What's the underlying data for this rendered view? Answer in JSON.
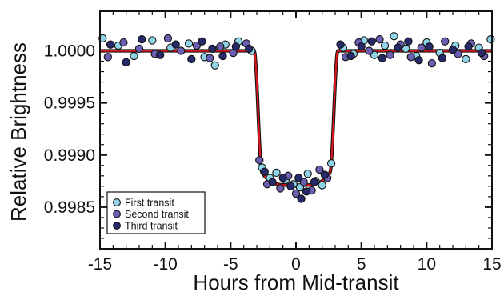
{
  "chart_data": {
    "type": "scatter",
    "title": "",
    "xlabel": "Hours from Mid-transit",
    "ylabel": "Relative Brightness",
    "xlim": [
      -15,
      15
    ],
    "ylim": [
      0.9981,
      1.00038
    ],
    "grid": false,
    "legend_position": "bottom-left",
    "x_ticks": [
      -15,
      -10,
      -5,
      0,
      5,
      10,
      15
    ],
    "x_tick_labels": [
      "-15",
      "-10",
      "-5",
      "0",
      "5",
      "10",
      "15"
    ],
    "y_ticks": [
      1.0,
      0.9995,
      0.999,
      0.9985
    ],
    "y_tick_labels": [
      "1.0000",
      "0.9995",
      "0.9990",
      "0.9985"
    ],
    "colors": {
      "first": "#8fd3e6",
      "second": "#6a5fb3",
      "third": "#262a6b",
      "model": "#d6161c",
      "marker_edge": "#111111"
    },
    "series": [
      {
        "name": "First transit",
        "points": [
          [
            -14.8,
            1.00012
          ],
          [
            -13.6,
            1.00005
          ],
          [
            -12.4,
            0.99995
          ],
          [
            -11.0,
            1.0001
          ],
          [
            -9.6,
            1.00003
          ],
          [
            -8.2,
            1.00007
          ],
          [
            -7.0,
            0.99994
          ],
          [
            -6.2,
            0.99986
          ],
          [
            -5.4,
            1.00006
          ],
          [
            -4.4,
            1.00009
          ],
          [
            -3.4,
            1.0
          ],
          [
            -2.6,
            0.99888
          ],
          [
            -2.0,
            0.99878
          ],
          [
            -1.5,
            0.99883
          ],
          [
            -0.8,
            0.99876
          ],
          [
            -0.2,
            0.99872
          ],
          [
            0.3,
            0.99869
          ],
          [
            0.9,
            0.99882
          ],
          [
            1.5,
            0.99875
          ],
          [
            2.0,
            0.99871
          ],
          [
            2.7,
            0.99892
          ],
          [
            3.6,
            1.00003
          ],
          [
            4.4,
            0.99997
          ],
          [
            5.2,
            1.0001
          ],
          [
            6.0,
            0.99996
          ],
          [
            6.8,
            1.00005
          ],
          [
            7.5,
            1.00014
          ],
          [
            8.4,
            1.00002
          ],
          [
            9.2,
            0.99995
          ],
          [
            10.0,
            1.00008
          ],
          [
            11.0,
            0.99998
          ],
          [
            12.2,
            1.00005
          ],
          [
            13.0,
            0.99992
          ],
          [
            14.0,
            1.00003
          ],
          [
            14.9,
            1.00011
          ]
        ]
      },
      {
        "name": "Second transit",
        "points": [
          [
            -14.4,
            0.99994
          ],
          [
            -13.2,
            1.00008
          ],
          [
            -12.0,
            1.00002
          ],
          [
            -10.8,
            0.99997
          ],
          [
            -9.8,
            1.00012
          ],
          [
            -8.8,
            1.0
          ],
          [
            -7.6,
            1.00005
          ],
          [
            -6.6,
            0.99993
          ],
          [
            -5.8,
            1.00004
          ],
          [
            -4.8,
            0.99998
          ],
          [
            -3.8,
            1.00007
          ],
          [
            -2.8,
            0.99895
          ],
          [
            -2.2,
            0.99872
          ],
          [
            -1.2,
            0.99868
          ],
          [
            -0.6,
            0.9988
          ],
          [
            0.0,
            0.99863
          ],
          [
            0.6,
            0.99874
          ],
          [
            1.2,
            0.99866
          ],
          [
            1.8,
            0.99886
          ],
          [
            2.4,
            0.99878
          ],
          [
            3.8,
            0.99994
          ],
          [
            4.8,
            1.00008
          ],
          [
            5.6,
            1.0
          ],
          [
            6.4,
            1.00011
          ],
          [
            7.2,
            0.99996
          ],
          [
            8.0,
            1.00006
          ],
          [
            8.8,
            0.99994
          ],
          [
            9.6,
            1.00003
          ],
          [
            10.4,
            0.99988
          ],
          [
            11.4,
            1.00009
          ],
          [
            12.4,
            0.99997
          ],
          [
            13.4,
            1.00007
          ],
          [
            14.4,
            0.99995
          ]
        ]
      },
      {
        "name": "Third transit",
        "points": [
          [
            -14.2,
            1.00006
          ],
          [
            -13.0,
            0.99989
          ],
          [
            -11.8,
            1.00011
          ],
          [
            -10.4,
            0.99996
          ],
          [
            -9.2,
            1.00006
          ],
          [
            -8.0,
            0.99992
          ],
          [
            -7.2,
            1.00009
          ],
          [
            -6.4,
            1.00002
          ],
          [
            -5.6,
            0.99995
          ],
          [
            -4.6,
            1.00004
          ],
          [
            -3.6,
            1.00002
          ],
          [
            -2.4,
            0.99884
          ],
          [
            -1.8,
            0.99874
          ],
          [
            -1.0,
            0.99878
          ],
          [
            -0.4,
            0.9987
          ],
          [
            0.2,
            0.99878
          ],
          [
            0.8,
            0.99865
          ],
          [
            1.4,
            0.99874
          ],
          [
            2.2,
            0.99881
          ],
          [
            0.4,
            0.99858
          ],
          [
            3.4,
            1.00006
          ],
          [
            4.2,
            0.99995
          ],
          [
            5.0,
            1.00004
          ],
          [
            5.8,
            1.00009
          ],
          [
            6.6,
            0.99993
          ],
          [
            7.8,
            1.00003
          ],
          [
            8.6,
            1.00009
          ],
          [
            9.4,
            0.99991
          ],
          [
            10.2,
            1.00004
          ],
          [
            11.2,
            0.99993
          ],
          [
            12.0,
            1.00001
          ],
          [
            13.2,
            1.00004
          ],
          [
            14.2,
            0.99998
          ]
        ]
      }
    ],
    "model_curve": {
      "baseline": 1.0,
      "depth": 0.00129,
      "ingress_start": -3.2,
      "ingress_end": -2.6,
      "egress_start": 2.6,
      "egress_end": 3.2
    }
  }
}
